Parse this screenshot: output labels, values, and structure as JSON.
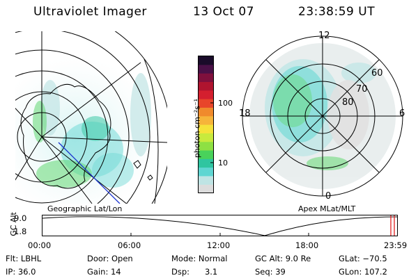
{
  "header": {
    "title": "Ultraviolet Imager",
    "date": "13 Oct 07",
    "time": "23:38:59 UT"
  },
  "left_panel": {
    "label": "Geographic Lat/Lon"
  },
  "right_panel": {
    "label": "Apex MLat/MLT",
    "mlt_labels": {
      "top": "12",
      "left": "18",
      "right": "6",
      "bottom": "0"
    },
    "lat_labels": [
      "60",
      "70",
      "80"
    ]
  },
  "colorbar": {
    "unit_label": "photon cm⁻²s⁻¹",
    "ticks": [
      "100",
      "10"
    ],
    "colors": [
      "#dcdcdc",
      "#bfe4e4",
      "#5fd6d2",
      "#2fc5a0",
      "#49d25b",
      "#8ee043",
      "#c8ea3d",
      "#f5e23a",
      "#f6b43a",
      "#f08a2c",
      "#e8452a",
      "#d41f2f",
      "#b0142f",
      "#80103d",
      "#4a1047",
      "#1a0b2a"
    ]
  },
  "altitude_plot": {
    "ylabel": "GC Alt",
    "y_ticks": [
      "9.0",
      "1.8"
    ],
    "x_ticks": [
      "00:00",
      "06:00",
      "12:00",
      "18:00",
      "23:59"
    ],
    "current_marker_color": "#e02020"
  },
  "footer": {
    "col1": [
      "Flt: LBHL",
      "IP: 36.0"
    ],
    "col2": [
      "Door: Open",
      "Gain: 14"
    ],
    "col3": [
      "Mode: Normal",
      "Dsp:      3.1"
    ],
    "col4": [
      "GC Alt: 9.0 Re",
      "Seq: 39"
    ],
    "col5": [
      "GLat: −70.5",
      "GLon: 107.2"
    ]
  }
}
